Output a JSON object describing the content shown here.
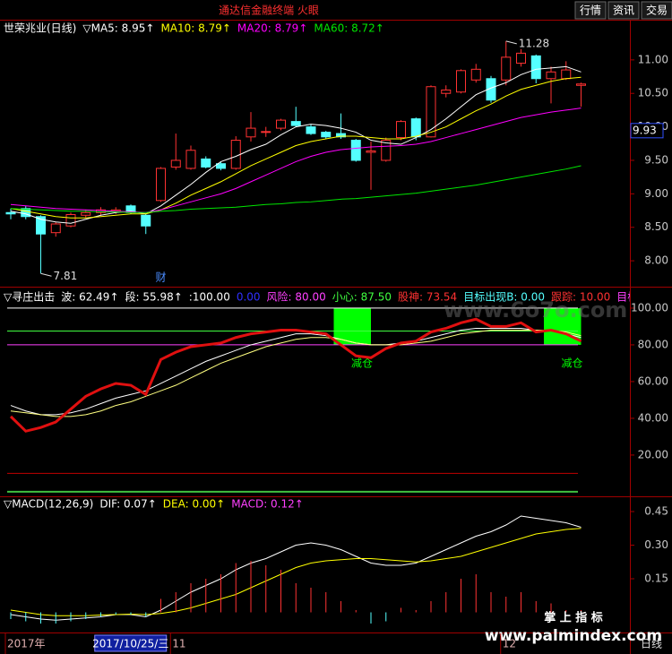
{
  "window": {
    "title": "通达信金融终端 火眼",
    "buttons": [
      "行情",
      "资讯",
      "交易"
    ],
    "period": "日线"
  },
  "watermarks": {
    "top": "www.6o7o.com",
    "brand": "掌 上 指 标",
    "site": "www.palmindex.com"
  },
  "dates": [
    {
      "label": "2017年",
      "index": 0
    },
    {
      "label": "11",
      "index": 11
    },
    {
      "label": "12",
      "index": 33
    }
  ],
  "cursor_date": {
    "label": "2017/10/25/三",
    "index": 9
  },
  "chart_data": [
    {
      "type": "candlestick",
      "title": "世荣兆业(日线)",
      "ylim": [
        7.64,
        11.6
      ],
      "yticks": [
        {
          "value": 8,
          "label": "8.00"
        },
        {
          "value": 8.5,
          "label": "8.50"
        },
        {
          "value": 9,
          "label": "9.00"
        },
        {
          "value": 9.5,
          "label": "9.50"
        },
        {
          "value": 10,
          "label": "10.00"
        },
        {
          "value": 10.5,
          "label": "10.50"
        },
        {
          "value": 11,
          "label": "11.00"
        }
      ],
      "up_color": "#ff3232",
      "down_color": "#54ffff",
      "ohlc": [
        [
          8.72,
          8.78,
          8.62,
          8.7
        ],
        [
          8.78,
          8.82,
          8.62,
          8.66
        ],
        [
          8.66,
          8.68,
          7.81,
          8.4
        ],
        [
          8.42,
          8.58,
          8.36,
          8.55
        ],
        [
          8.52,
          8.72,
          8.5,
          8.69
        ],
        [
          8.68,
          8.76,
          8.64,
          8.72
        ],
        [
          8.72,
          8.8,
          8.68,
          8.76
        ],
        [
          8.74,
          8.8,
          8.7,
          8.76
        ],
        [
          8.82,
          8.84,
          8.7,
          8.72
        ],
        [
          8.68,
          8.7,
          8.4,
          8.52
        ],
        [
          8.9,
          9.4,
          8.88,
          9.38
        ],
        [
          9.4,
          9.9,
          9.36,
          9.5
        ],
        [
          9.38,
          9.72,
          9.36,
          9.65
        ],
        [
          9.52,
          9.56,
          9.38,
          9.4
        ],
        [
          9.45,
          9.48,
          9.35,
          9.38
        ],
        [
          9.38,
          9.86,
          9.36,
          9.8
        ],
        [
          9.85,
          10.22,
          9.78,
          9.98
        ],
        [
          9.92,
          10.0,
          9.85,
          9.93
        ],
        [
          9.98,
          10.12,
          9.95,
          10.1
        ],
        [
          10.08,
          10.3,
          10.0,
          10.02
        ],
        [
          10.0,
          10.04,
          9.88,
          9.9
        ],
        [
          9.92,
          9.94,
          9.82,
          9.85
        ],
        [
          9.9,
          10.2,
          9.82,
          9.85
        ],
        [
          9.8,
          9.82,
          9.48,
          9.5
        ],
        [
          9.62,
          9.78,
          9.06,
          9.64
        ],
        [
          9.5,
          9.84,
          9.48,
          9.8
        ],
        [
          9.84,
          10.1,
          9.8,
          10.08
        ],
        [
          10.12,
          10.14,
          9.8,
          9.85
        ],
        [
          9.85,
          10.62,
          9.84,
          10.6
        ],
        [
          10.5,
          10.62,
          10.44,
          10.55
        ],
        [
          10.52,
          10.86,
          10.5,
          10.84
        ],
        [
          10.7,
          10.94,
          10.66,
          10.86
        ],
        [
          10.72,
          10.76,
          10.36,
          10.4
        ],
        [
          10.7,
          11.28,
          10.62,
          11.04
        ],
        [
          10.95,
          11.16,
          10.9,
          11.1
        ],
        [
          11.06,
          11.08,
          10.65,
          10.72
        ],
        [
          10.72,
          10.9,
          10.35,
          10.82
        ],
        [
          10.72,
          10.98,
          10.7,
          10.85
        ],
        [
          10.62,
          10.66,
          10.3,
          10.64
        ]
      ],
      "series": [
        {
          "name": "▽MA5: 8.95↑",
          "color": "#ffffff",
          "values": [
            8.74,
            8.7,
            8.62,
            8.58,
            8.56,
            8.62,
            8.68,
            8.72,
            8.74,
            8.7,
            8.82,
            8.98,
            9.14,
            9.32,
            9.48,
            9.56,
            9.66,
            9.74,
            9.88,
            10.0,
            10.04,
            10.02,
            9.98,
            9.92,
            9.8,
            9.76,
            9.74,
            9.84,
            9.96,
            10.12,
            10.3,
            10.48,
            10.58,
            10.66,
            10.78,
            10.86,
            10.88,
            10.9,
            10.82
          ]
        },
        {
          "name": "MA10: 8.79↑",
          "color": "#ffff00",
          "values": [
            8.78,
            8.74,
            8.7,
            8.66,
            8.64,
            8.64,
            8.66,
            8.68,
            8.7,
            8.7,
            8.76,
            8.86,
            8.98,
            9.08,
            9.18,
            9.3,
            9.42,
            9.52,
            9.62,
            9.72,
            9.78,
            9.82,
            9.86,
            9.86,
            9.84,
            9.82,
            9.82,
            9.86,
            9.92,
            10.0,
            10.12,
            10.24,
            10.34,
            10.46,
            10.56,
            10.62,
            10.68,
            10.72,
            10.74
          ]
        },
        {
          "name": "MA20: 8.79↑",
          "color": "#ff00ff",
          "values": [
            8.84,
            8.82,
            8.8,
            8.78,
            8.77,
            8.76,
            8.75,
            8.74,
            8.73,
            8.72,
            8.76,
            8.82,
            8.88,
            8.94,
            9.0,
            9.08,
            9.18,
            9.28,
            9.38,
            9.48,
            9.56,
            9.62,
            9.66,
            9.68,
            9.7,
            9.71,
            9.72,
            9.74,
            9.78,
            9.84,
            9.9,
            9.96,
            10.02,
            10.08,
            10.14,
            10.18,
            10.22,
            10.25,
            10.28
          ]
        },
        {
          "name": "MA60: 8.72↑",
          "color": "#00e600",
          "values": [
            8.78,
            8.77,
            8.76,
            8.75,
            8.74,
            8.74,
            8.73,
            8.73,
            8.72,
            8.72,
            8.74,
            8.75,
            8.77,
            8.78,
            8.79,
            8.8,
            8.82,
            8.84,
            8.85,
            8.87,
            8.88,
            8.9,
            8.92,
            8.93,
            8.95,
            8.97,
            8.99,
            9.01,
            9.04,
            9.07,
            9.1,
            9.13,
            9.17,
            9.21,
            9.25,
            9.29,
            9.33,
            9.37,
            9.42
          ]
        }
      ],
      "extremes": [
        {
          "index": 33,
          "value": 11.28
        },
        {
          "index": 2,
          "value": 7.81
        }
      ],
      "news_markers": [
        {
          "index": 10,
          "text": "财"
        }
      ],
      "last_price": 9.93
    },
    {
      "type": "indicator",
      "title": "▽寻庄出击",
      "ylim": [
        -1.5,
        110.7
      ],
      "yticks": [
        {
          "value": 20,
          "label": "20.00"
        },
        {
          "value": 40,
          "label": "40.00"
        },
        {
          "value": 60,
          "label": "60.00"
        },
        {
          "value": 80,
          "label": "80.00"
        },
        {
          "value": 100,
          "label": "100.00"
        }
      ],
      "header_items": [
        {
          "text": "波: 62.49↑",
          "color": "#ffffff"
        },
        {
          "text": "段: 55.98↑",
          "color": "#ffffff"
        },
        {
          "text": ":100.00",
          "color": "#ffffff"
        },
        {
          "text": "0.00",
          "color": "#3030ff"
        },
        {
          "text": "风险: 80.00",
          "color": "#ff40ff"
        },
        {
          "text": "小心: 87.50",
          "color": "#40ff40"
        },
        {
          "text": "股神: 73.54",
          "color": "#ff3232"
        },
        {
          "text": "目标出现B: 0.00",
          "color": "#54ffff"
        },
        {
          "text": "跟踪: 10.00",
          "color": "#ff3232"
        },
        {
          "text": "目标出",
          "color": "#ff40ff"
        }
      ],
      "levels": [
        {
          "value": 100,
          "color": "#ffffff"
        },
        {
          "value": 87.5,
          "color": "#40ff40"
        },
        {
          "value": 80,
          "color": "#ff40ff"
        },
        {
          "value": 10,
          "color": "#c00000"
        },
        {
          "value": 0,
          "color": "#40c040"
        }
      ],
      "lines": [
        {
          "color": "#ffffff",
          "width": 1,
          "values": [
            47,
            44,
            42,
            42,
            43,
            45,
            48,
            51,
            53,
            55,
            59,
            63,
            67,
            71,
            74,
            77,
            80,
            82,
            84,
            86,
            86,
            85,
            83,
            81,
            80,
            80,
            81,
            82,
            84,
            86,
            88,
            89,
            89,
            89,
            89,
            88,
            88,
            86,
            84
          ]
        },
        {
          "color": "#ffff80",
          "width": 1,
          "values": [
            44,
            43,
            42,
            41,
            41,
            42,
            44,
            47,
            49,
            52,
            55,
            58,
            62,
            66,
            70,
            73,
            76,
            79,
            81,
            83,
            84,
            84,
            83,
            81,
            80,
            80,
            80,
            81,
            82,
            84,
            86,
            87,
            88,
            88,
            88,
            88,
            88,
            87,
            85
          ]
        },
        {
          "color": "#e01010",
          "width": 3,
          "values": [
            41,
            33,
            35,
            38,
            45,
            52,
            56,
            59,
            58,
            53,
            72,
            76,
            79,
            80,
            81,
            84,
            86,
            87,
            88,
            88,
            87,
            86,
            80,
            74,
            73,
            78,
            81,
            82,
            87,
            89,
            92,
            94,
            90,
            90,
            92,
            87,
            88,
            86,
            82
          ]
        }
      ],
      "zones": [
        {
          "from": 22,
          "to": 24,
          "low": 80,
          "high": 100,
          "label": "减仓",
          "color": "#00ff00"
        },
        {
          "from": 36,
          "to": 38,
          "low": 80,
          "high": 100,
          "label": "减仓",
          "color": "#00ff00"
        }
      ]
    },
    {
      "type": "macd",
      "title": "▽MACD(12,26,9)",
      "ylim": [
        -0.086,
        0.51
      ],
      "yticks": [
        0.15,
        {
          "value": 0.3,
          "label": "0.30"
        },
        0.45
      ],
      "up_color": "#ff3232",
      "down_color": "#54ffff",
      "series": [
        {
          "name": "DIF: 0.07↑",
          "color": "#ffffff",
          "values": [
            -0.01,
            -0.02,
            -0.03,
            -0.035,
            -0.03,
            -0.025,
            -0.02,
            -0.01,
            -0.01,
            -0.02,
            0.01,
            0.05,
            0.09,
            0.12,
            0.15,
            0.19,
            0.22,
            0.24,
            0.27,
            0.3,
            0.31,
            0.3,
            0.28,
            0.25,
            0.22,
            0.21,
            0.21,
            0.22,
            0.25,
            0.28,
            0.31,
            0.34,
            0.36,
            0.39,
            0.43,
            0.42,
            0.41,
            0.4,
            0.38
          ]
        },
        {
          "name": "DEA: 0.00↑",
          "color": "#ffff00",
          "values": [
            0.01,
            0.0,
            -0.01,
            -0.015,
            -0.015,
            -0.015,
            -0.012,
            -0.01,
            -0.008,
            -0.01,
            -0.005,
            0.005,
            0.02,
            0.04,
            0.06,
            0.08,
            0.11,
            0.14,
            0.17,
            0.2,
            0.22,
            0.23,
            0.235,
            0.24,
            0.24,
            0.235,
            0.23,
            0.225,
            0.23,
            0.24,
            0.25,
            0.27,
            0.29,
            0.31,
            0.33,
            0.35,
            0.36,
            0.37,
            0.375
          ]
        },
        {
          "name": "MACD: 0.12↑",
          "color": "#ff40ff",
          "bars": true,
          "values": [
            -0.03,
            -0.04,
            -0.05,
            -0.05,
            -0.04,
            -0.03,
            -0.02,
            -0.01,
            -0.01,
            -0.02,
            0.06,
            0.09,
            0.13,
            0.15,
            0.17,
            0.22,
            0.23,
            0.21,
            0.19,
            0.13,
            0.11,
            0.09,
            0.05,
            0.01,
            -0.05,
            -0.04,
            0.02,
            0.01,
            0.05,
            0.09,
            0.15,
            0.17,
            0.09,
            0.07,
            0.09,
            0.05,
            0.04,
            0.01,
            0.01
          ]
        }
      ]
    }
  ]
}
